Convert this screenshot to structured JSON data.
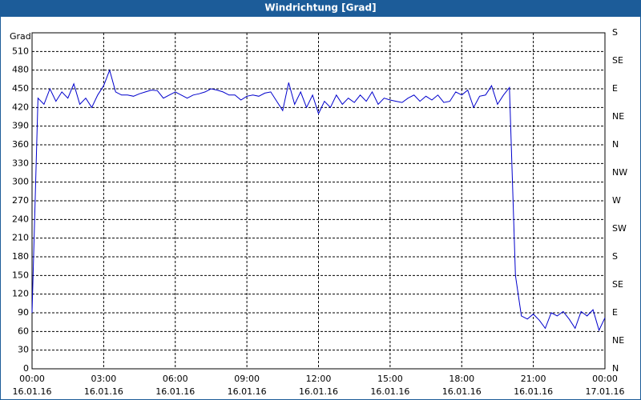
{
  "chart_data": {
    "type": "line",
    "title": "Windrichtung [Grad]",
    "y_label": "Grad",
    "x": [
      0,
      0.25,
      0.5,
      0.75,
      1,
      1.25,
      1.5,
      1.75,
      2,
      2.25,
      2.5,
      2.75,
      3,
      3.25,
      3.5,
      3.75,
      4,
      4.25,
      4.5,
      4.75,
      5,
      5.25,
      5.5,
      5.75,
      6,
      6.25,
      6.5,
      6.75,
      7,
      7.25,
      7.5,
      7.75,
      8,
      8.25,
      8.5,
      8.75,
      9,
      9.25,
      9.5,
      9.75,
      10,
      10.25,
      10.5,
      10.75,
      11,
      11.25,
      11.5,
      11.75,
      12,
      12.25,
      12.5,
      12.75,
      13,
      13.25,
      13.5,
      13.75,
      14,
      14.25,
      14.5,
      14.75,
      15,
      15.25,
      15.5,
      15.75,
      16,
      16.25,
      16.5,
      16.75,
      17,
      17.25,
      17.5,
      17.75,
      18,
      18.25,
      18.5,
      18.75,
      19,
      19.25,
      19.5,
      19.75,
      20,
      20.25,
      20.5,
      20.75,
      21,
      21.25,
      21.5,
      21.75,
      22,
      22.25,
      22.5,
      22.75,
      23,
      23.25,
      23.5,
      23.75,
      24
    ],
    "series": [
      {
        "color": "#0000cc",
        "values": [
          90,
          435,
          425,
          450,
          430,
          445,
          435,
          458,
          425,
          435,
          420,
          440,
          455,
          480,
          445,
          440,
          440,
          438,
          442,
          445,
          448,
          447,
          435,
          440,
          445,
          440,
          435,
          440,
          442,
          445,
          450,
          448,
          445,
          440,
          440,
          432,
          438,
          440,
          438,
          443,
          445,
          430,
          415,
          460,
          425,
          445,
          420,
          440,
          410,
          430,
          420,
          440,
          425,
          435,
          428,
          440,
          430,
          445,
          425,
          435,
          432,
          430,
          428,
          435,
          440,
          430,
          438,
          432,
          440,
          428,
          430,
          445,
          440,
          448,
          420,
          438,
          440,
          455,
          425,
          440,
          452,
          150,
          85,
          80,
          88,
          78,
          65,
          90,
          85,
          92,
          80,
          65,
          92,
          85,
          95,
          62,
          82
        ]
      }
    ],
    "xlim": [
      0,
      24
    ],
    "xticks": [
      {
        "value": 0,
        "label": "00:00",
        "date": "16.01.16"
      },
      {
        "value": 3,
        "label": "03:00",
        "date": "16.01.16"
      },
      {
        "value": 6,
        "label": "06:00",
        "date": "16.01.16"
      },
      {
        "value": 9,
        "label": "09:00",
        "date": "16.01.16"
      },
      {
        "value": 12,
        "label": "12:00",
        "date": "16.01.16"
      },
      {
        "value": 15,
        "label": "15:00",
        "date": "16.01.16"
      },
      {
        "value": 18,
        "label": "18:00",
        "date": "16.01.16"
      },
      {
        "value": 21,
        "label": "21:00",
        "date": "16.01.16"
      },
      {
        "value": 24,
        "label": "00:00",
        "date": "17.01.16"
      }
    ],
    "ylim": [
      0,
      540
    ],
    "yticks": [
      0,
      30,
      60,
      90,
      120,
      150,
      180,
      210,
      240,
      270,
      300,
      330,
      360,
      390,
      420,
      450,
      480,
      510
    ],
    "y2lim": [
      0,
      540
    ],
    "y2ticks": [
      {
        "value": 0,
        "label": "N"
      },
      {
        "value": 45,
        "label": "NE"
      },
      {
        "value": 90,
        "label": "E"
      },
      {
        "value": 135,
        "label": "SE"
      },
      {
        "value": 180,
        "label": "S"
      },
      {
        "value": 225,
        "label": "SW"
      },
      {
        "value": 270,
        "label": "W"
      },
      {
        "value": 315,
        "label": "NW"
      },
      {
        "value": 360,
        "label": "N"
      },
      {
        "value": 405,
        "label": "NE"
      },
      {
        "value": 450,
        "label": "E"
      },
      {
        "value": 495,
        "label": "SE"
      },
      {
        "value": 540,
        "label": "S"
      }
    ],
    "grid": true
  }
}
